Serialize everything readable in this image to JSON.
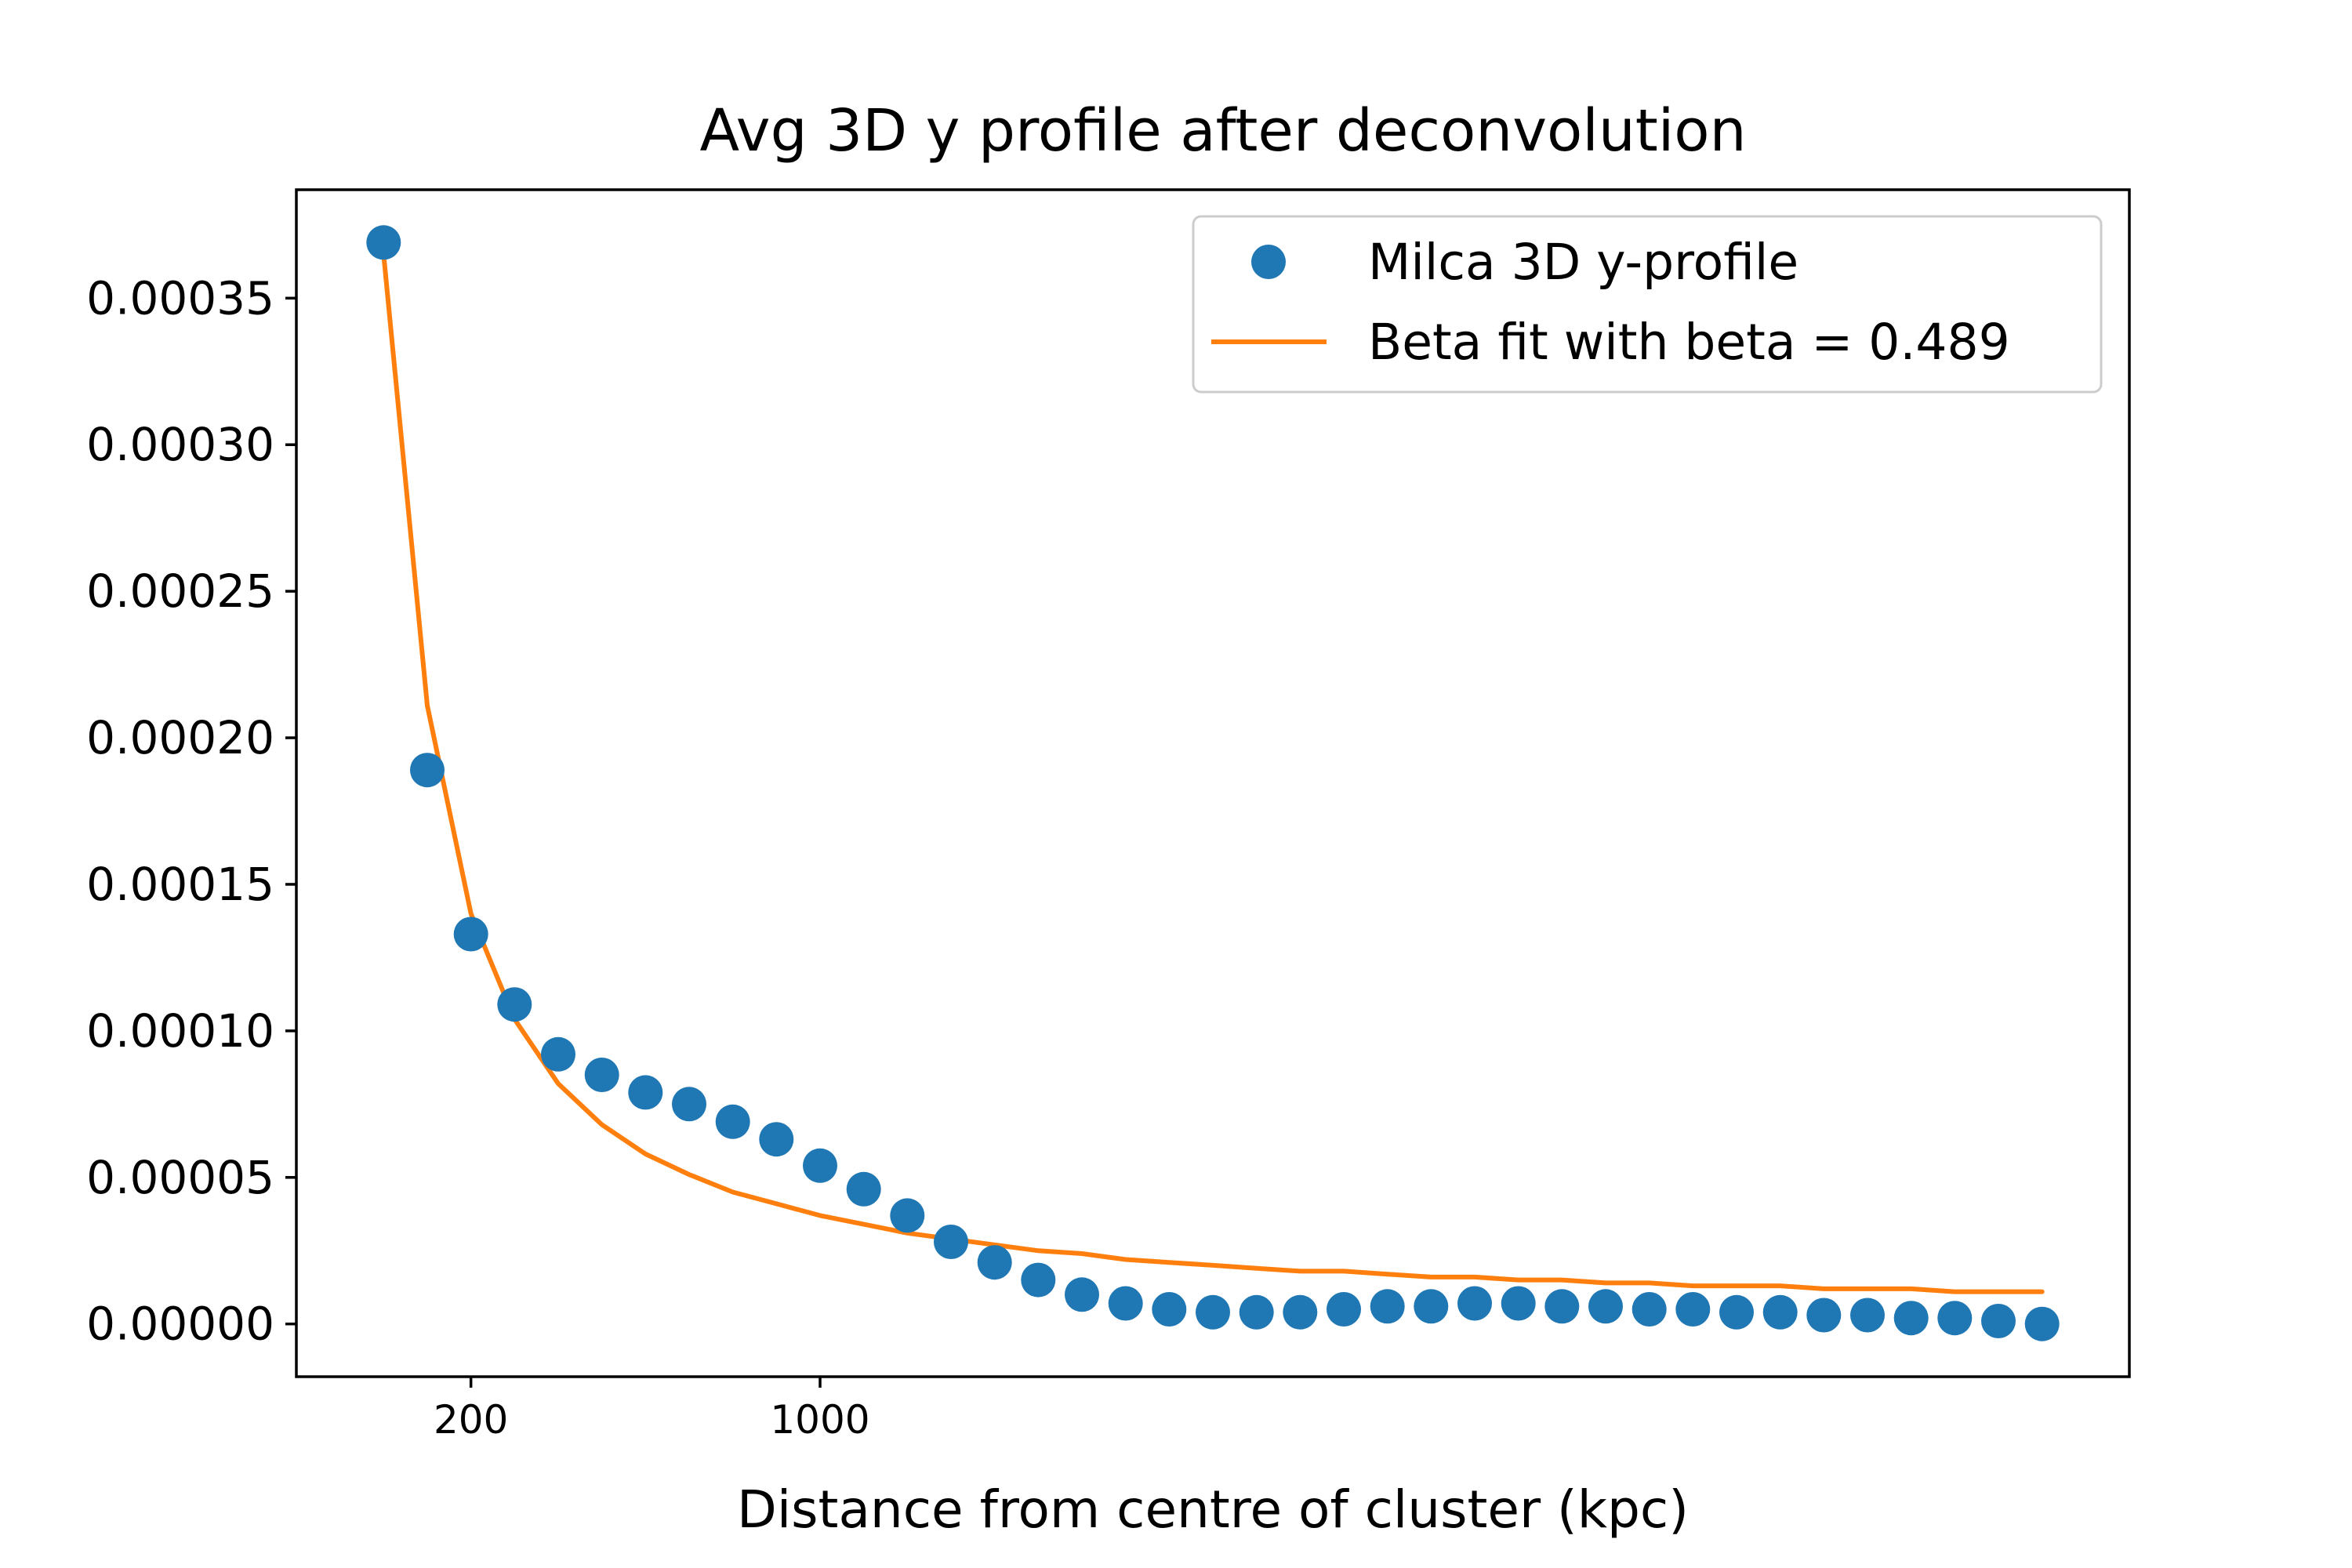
{
  "chart_data": {
    "type": "scatter",
    "title": "Avg 3D y profile after deconvolution",
    "xlabel": "Distance from centre of cluster (kpc)",
    "ylabel": "",
    "xlim": [
      -200,
      4000
    ],
    "ylim": [
      -1.8e-05,
      0.000387
    ],
    "x_ticks": [
      {
        "value": 200,
        "label": "200"
      },
      {
        "value": 1000,
        "label": "1000"
      }
    ],
    "y_ticks": [
      {
        "value": 0.0,
        "label": "0.00000"
      },
      {
        "value": 5e-05,
        "label": "0.00005"
      },
      {
        "value": 0.0001,
        "label": "0.00010"
      },
      {
        "value": 0.00015,
        "label": "0.00015"
      },
      {
        "value": 0.0002,
        "label": "0.00020"
      },
      {
        "value": 0.00025,
        "label": "0.00025"
      },
      {
        "value": 0.0003,
        "label": "0.00030"
      },
      {
        "value": 0.00035,
        "label": "0.00035"
      }
    ],
    "legend_position": "top-right",
    "grid": false,
    "series": [
      {
        "name": "Milca 3D y-profile",
        "kind": "scatter",
        "color": "#1f77b4",
        "x": [
          0,
          100,
          200,
          300,
          400,
          500,
          600,
          700,
          800,
          900,
          1000,
          1100,
          1200,
          1300,
          1400,
          1500,
          1600,
          1700,
          1800,
          1900,
          2000,
          2100,
          2200,
          2300,
          2400,
          2500,
          2600,
          2700,
          2800,
          2900,
          3000,
          3100,
          3200,
          3300,
          3400,
          3500,
          3600,
          3700,
          3800
        ],
        "y": [
          0.000369,
          0.000189,
          0.000133,
          0.000109,
          9.2e-05,
          8.5e-05,
          7.9e-05,
          7.5e-05,
          6.9e-05,
          6.3e-05,
          5.4e-05,
          4.6e-05,
          3.7e-05,
          2.8e-05,
          2.1e-05,
          1.5e-05,
          1e-05,
          7e-06,
          5e-06,
          4e-06,
          4e-06,
          4e-06,
          5e-06,
          6e-06,
          6e-06,
          7e-06,
          7e-06,
          6e-06,
          6e-06,
          5e-06,
          5e-06,
          4e-06,
          4e-06,
          3e-06,
          3e-06,
          2e-06,
          2e-06,
          1e-06,
          0.0
        ]
      },
      {
        "name": "Beta fit with beta = 0.489",
        "kind": "line",
        "color": "#ff7f0e",
        "x": [
          0,
          100,
          200,
          300,
          400,
          500,
          600,
          700,
          800,
          900,
          1000,
          1100,
          1200,
          1300,
          1400,
          1500,
          1600,
          1700,
          1800,
          1900,
          2000,
          2100,
          2200,
          2300,
          2400,
          2500,
          2600,
          2700,
          2800,
          2900,
          3000,
          3100,
          3200,
          3300,
          3400,
          3500,
          3600,
          3700,
          3800
        ],
        "y": [
          0.000365,
          0.000211,
          0.00014,
          0.000104,
          8.2e-05,
          6.8e-05,
          5.8e-05,
          5.1e-05,
          4.5e-05,
          4.1e-05,
          3.7e-05,
          3.4e-05,
          3.1e-05,
          2.9e-05,
          2.7e-05,
          2.5e-05,
          2.4e-05,
          2.2e-05,
          2.1e-05,
          2e-05,
          1.9e-05,
          1.8e-05,
          1.8e-05,
          1.7e-05,
          1.6e-05,
          1.6e-05,
          1.5e-05,
          1.5e-05,
          1.4e-05,
          1.4e-05,
          1.3e-05,
          1.3e-05,
          1.3e-05,
          1.2e-05,
          1.2e-05,
          1.2e-05,
          1.1e-05,
          1.1e-05,
          1.1e-05
        ]
      }
    ]
  }
}
